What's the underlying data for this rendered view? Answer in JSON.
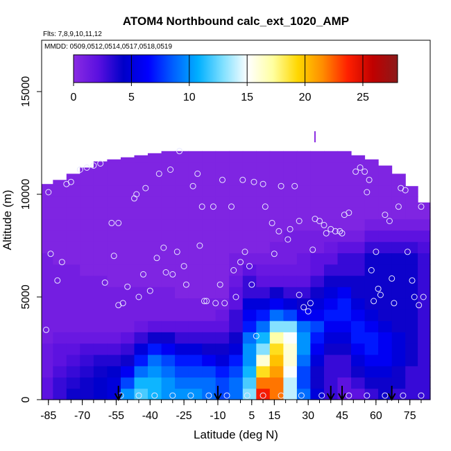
{
  "chart_data": {
    "type": "heatmap",
    "title": "ATOM4 Northbound calc_ext_1020_AMP",
    "annotations": [
      "Flts: 7,8,9,10,11,12",
      "MMDD: 0509,0512,0514,0517,0518,0519"
    ],
    "xlabel": "Latitude (deg N)",
    "ylabel": "Altitude (m)",
    "xlim": [
      -88,
      84
    ],
    "ylim": [
      0,
      17500
    ],
    "x_ticks": [
      -85,
      -70,
      -55,
      -40,
      -25,
      -10,
      5,
      15,
      30,
      45,
      60,
      75
    ],
    "y_ticks": [
      0,
      5000,
      10000,
      15000
    ],
    "colorbar": {
      "min": 0,
      "max": 28,
      "ticks": [
        0,
        5,
        10,
        15,
        20,
        25
      ],
      "colors": [
        "#8a2be2",
        "#5a10e0",
        "#0000c8",
        "#0000ff",
        "#0060ff",
        "#00b0ff",
        "#80e0ff",
        "#ffffff",
        "#ffffa0",
        "#ffd700",
        "#ff8c00",
        "#ff2000",
        "#c00000",
        "#8b1a1a"
      ]
    },
    "grid": false,
    "columns": [
      {
        "lat": -86,
        "top": 10500,
        "values": [
          2,
          2,
          1.5,
          1.5,
          1.5,
          1,
          1,
          1,
          1,
          1,
          1,
          1,
          1,
          0.5,
          0.5,
          0.5,
          0.5,
          0.5,
          0.5,
          0.5,
          0.5,
          0.5
        ]
      },
      {
        "lat": -80,
        "top": 10700,
        "values": [
          3,
          3,
          2.5,
          2,
          2,
          1.5,
          1,
          1,
          1,
          1,
          1,
          1,
          0.5,
          0.5,
          0.5,
          0.5,
          0.5,
          0.5,
          0.5,
          0.5,
          0.5,
          0.5
        ]
      },
      {
        "lat": -74,
        "top": 11000,
        "values": [
          4,
          3.5,
          3,
          2.5,
          2,
          1.5,
          1,
          1,
          1,
          1,
          1,
          1,
          0.5,
          0.5,
          0.5,
          0.5,
          0.5,
          0.5,
          0.5,
          0.5,
          0.5,
          0.5
        ]
      },
      {
        "lat": -68,
        "top": 11300,
        "values": [
          4,
          4,
          3.5,
          3,
          2.5,
          1.5,
          1,
          1,
          1,
          1,
          1,
          0.5,
          0.5,
          0.5,
          0.5,
          0.5,
          0.5,
          0.5,
          0.5,
          0.5,
          0.5,
          0.5
        ]
      },
      {
        "lat": -62,
        "top": 11600,
        "values": [
          4.5,
          4.5,
          4,
          3.5,
          2.5,
          1.5,
          1,
          1,
          1,
          1,
          1,
          0.5,
          0.5,
          0.5,
          0.5,
          0.5,
          0.5,
          0.5,
          0.5,
          0.5,
          0.5,
          0.5
        ]
      },
      {
        "lat": -56,
        "top": 11700,
        "values": [
          5,
          5,
          4.5,
          3.5,
          2.5,
          1.5,
          1,
          1,
          1,
          1,
          0.5,
          0.5,
          0.5,
          0.5,
          0.5,
          0.5,
          0.5,
          0.5,
          0.5,
          0.5,
          0.5,
          0.5
        ]
      },
      {
        "lat": -50,
        "top": 11800,
        "values": [
          10,
          8,
          6,
          4,
          3,
          2,
          1,
          1,
          1,
          1,
          0.5,
          0.5,
          0.5,
          0.5,
          0.5,
          0.5,
          0.5,
          0.5,
          0.5,
          0.5,
          0.5,
          0.5
        ]
      },
      {
        "lat": -44,
        "top": 11900,
        "values": [
          12,
          11,
          9,
          7,
          5,
          3,
          1.5,
          1,
          1,
          1,
          0.5,
          0.5,
          0.5,
          0.5,
          0.5,
          0.5,
          0.5,
          0.5,
          0.5,
          0.5,
          0.5,
          0.5
        ]
      },
      {
        "lat": -38,
        "top": 12000,
        "values": [
          11,
          11,
          10,
          9,
          7,
          4,
          2,
          1,
          1,
          1,
          0.5,
          0.5,
          0.5,
          0.5,
          0.5,
          0.5,
          0.5,
          0.5,
          0.5,
          0.5,
          0.5,
          0.5
        ]
      },
      {
        "lat": -32,
        "top": 12100,
        "values": [
          10,
          10,
          9,
          8,
          6,
          4,
          2,
          1,
          1,
          1,
          0.5,
          0.5,
          0.5,
          0.5,
          0.5,
          0.5,
          0.5,
          0.5,
          0.5,
          0.5,
          0.5,
          0.5
        ]
      },
      {
        "lat": -26,
        "top": 12100,
        "values": [
          10,
          9,
          8,
          7,
          5,
          3,
          2,
          1,
          1,
          0.5,
          0.5,
          0.5,
          0.5,
          0.5,
          0.5,
          0.5,
          0.5,
          0.5,
          0.5,
          0.5,
          0.5,
          0.5
        ]
      },
      {
        "lat": -20,
        "top": 12200,
        "values": [
          10,
          9,
          8,
          7,
          5,
          3,
          2,
          1,
          1,
          0.5,
          0.5,
          0.5,
          0.5,
          0.5,
          0.5,
          0.5,
          0.5,
          0.5,
          0.5,
          0.5,
          0.5,
          0.5
        ]
      },
      {
        "lat": -14,
        "top": 12200,
        "values": [
          9,
          9,
          8,
          6,
          4,
          3,
          2,
          1,
          1,
          0.5,
          0.5,
          0.5,
          0.5,
          0.5,
          0.5,
          0.5,
          0.5,
          0.5,
          0.5,
          0.5,
          0.5,
          0.5
        ]
      },
      {
        "lat": -8,
        "top": 12200,
        "values": [
          8,
          8,
          7,
          5,
          4,
          3,
          2,
          1.5,
          1,
          0.5,
          0.5,
          0.5,
          0.5,
          0.5,
          0.5,
          0.5,
          0.5,
          0.5,
          0.5,
          0.5,
          0.5,
          0.5
        ]
      },
      {
        "lat": -2,
        "top": 12200,
        "values": [
          9,
          9,
          8,
          7,
          5,
          4,
          3,
          3,
          2,
          2,
          1.5,
          1,
          1,
          0.5,
          0.5,
          0.5,
          0.5,
          0.5,
          0.5,
          0.5,
          0.5,
          0.5
        ]
      },
      {
        "lat": 4,
        "top": 12200,
        "values": [
          13,
          12,
          11,
          10,
          10,
          9,
          7,
          6,
          5,
          3,
          3,
          2,
          1,
          0.5,
          0.5,
          0.5,
          0.5,
          0.5,
          0.5,
          0.5,
          0.5,
          0.5
        ]
      },
      {
        "lat": 10,
        "top": 12300,
        "values": [
          24,
          22,
          19,
          16,
          13,
          11,
          9,
          7,
          5,
          3,
          2,
          1.5,
          1,
          0.5,
          0.5,
          0.5,
          0.5,
          0.5,
          0.5,
          0.5,
          0.5,
          0.5
        ]
      },
      {
        "lat": 16,
        "top": 12300,
        "values": [
          22,
          22,
          21,
          20,
          19,
          17,
          13,
          9,
          6,
          4,
          2,
          1.5,
          1,
          1,
          0.5,
          0.5,
          0.5,
          0.5,
          0.5,
          0.5,
          0.5,
          0.5
        ]
      },
      {
        "lat": 22,
        "top": 12300,
        "values": [
          14,
          14,
          15,
          16,
          16,
          15,
          13,
          8,
          5,
          3,
          2,
          1.5,
          1,
          1,
          1,
          0.5,
          0.5,
          0.5,
          0.5,
          0.5,
          0.5,
          0.5
        ]
      },
      {
        "lat": 28,
        "top": 12300,
        "values": [
          9,
          8,
          8,
          9,
          10,
          10,
          9,
          6,
          4,
          3,
          2,
          1.5,
          1.5,
          1,
          1,
          0.5,
          0.5,
          0.5,
          0.5,
          0.5,
          0.5,
          0.5
        ]
      },
      {
        "lat": 34,
        "top": 12200,
        "values": [
          5,
          4,
          4,
          5,
          6,
          7,
          8,
          6,
          5,
          4,
          3,
          2,
          2,
          1,
          1,
          0.5,
          0.5,
          0.5,
          0.5,
          0.5,
          0.5,
          0.5
        ]
      },
      {
        "lat": 40,
        "top": 12200,
        "values": [
          3,
          3,
          3,
          3,
          4,
          5,
          6,
          7,
          6,
          5,
          4,
          3,
          2,
          1.5,
          1,
          0.5,
          0.5,
          0.5,
          0.5,
          0.5,
          0.5,
          0.5
        ]
      },
      {
        "lat": 46,
        "top": 12100,
        "values": [
          2,
          2,
          3,
          3,
          4,
          5,
          6,
          7,
          7,
          6,
          4,
          3,
          3,
          2,
          1,
          0.5,
          0.5,
          0.5,
          0.5,
          0.5,
          0.5,
          0.5
        ]
      },
      {
        "lat": 52,
        "top": 11900,
        "values": [
          2,
          3,
          4,
          5,
          6,
          7,
          7,
          6,
          5,
          4,
          4,
          3,
          3,
          2,
          1,
          0.5,
          0.5,
          0.5,
          0.5,
          0.5,
          0.5,
          0.5
        ]
      },
      {
        "lat": 58,
        "top": 11700,
        "values": [
          3,
          4,
          5,
          6,
          7,
          7,
          6,
          5,
          4,
          4,
          4,
          4,
          4,
          3,
          2,
          1,
          0.5,
          0.5,
          0.5,
          0.5,
          0.5,
          0.5
        ]
      },
      {
        "lat": 64,
        "top": 11400,
        "values": [
          4,
          4,
          5,
          6,
          6,
          6,
          5,
          4,
          4,
          4,
          4,
          4,
          4,
          3,
          2,
          1,
          0.5,
          0.5,
          0.5,
          0.5,
          0.5,
          0.5
        ]
      },
      {
        "lat": 70,
        "top": 11000,
        "values": [
          3,
          4,
          4,
          5,
          5,
          5,
          4,
          4,
          4,
          4,
          4,
          4,
          4,
          3,
          2,
          1,
          0.5,
          0.5,
          0.5,
          0.5,
          0.5,
          0.5
        ]
      },
      {
        "lat": 76,
        "top": 10400,
        "values": [
          3,
          3,
          3,
          4,
          4,
          4,
          4,
          4,
          4,
          4,
          4,
          4,
          4,
          3,
          2,
          1,
          0.5,
          0.5,
          0.5,
          0.5,
          0.5,
          0.5
        ]
      },
      {
        "lat": 81,
        "top": 9600,
        "values": [
          3,
          3,
          3,
          3,
          3,
          3,
          3,
          3,
          3,
          3,
          3,
          3,
          3,
          2.5,
          2,
          1,
          0.5,
          0.5,
          0.5,
          0.5,
          0.5,
          0.5
        ]
      }
    ],
    "row_height_m": 550,
    "obs_points": [
      [
        -86,
        3400
      ],
      [
        -85,
        10100
      ],
      [
        -84,
        7100
      ],
      [
        -81,
        5800
      ],
      [
        -79,
        6700
      ],
      [
        -77,
        10500
      ],
      [
        -75,
        10600
      ],
      [
        -71,
        11200
      ],
      [
        -68,
        11300
      ],
      [
        -65,
        11400
      ],
      [
        -62,
        11500
      ],
      [
        -60,
        5700
      ],
      [
        -57,
        8600
      ],
      [
        -56,
        7000
      ],
      [
        -54,
        8600
      ],
      [
        -54,
        4600
      ],
      [
        -52,
        4700
      ],
      [
        -50,
        5500
      ],
      [
        -47,
        9800
      ],
      [
        -46,
        10000
      ],
      [
        -45,
        5000
      ],
      [
        -43,
        6100
      ],
      [
        -42,
        10300
      ],
      [
        -40,
        5300
      ],
      [
        -37,
        6900
      ],
      [
        -36,
        11000
      ],
      [
        -34,
        7400
      ],
      [
        -33,
        6200
      ],
      [
        -31,
        11200
      ],
      [
        -30,
        6100
      ],
      [
        -28,
        7200
      ],
      [
        -27,
        12100
      ],
      [
        -25,
        6500
      ],
      [
        -24,
        5600
      ],
      [
        -21,
        10400
      ],
      [
        -19,
        11000
      ],
      [
        -18,
        7500
      ],
      [
        -17,
        9400
      ],
      [
        -16,
        4800
      ],
      [
        -15,
        4800
      ],
      [
        -12,
        9400
      ],
      [
        -11,
        4700
      ],
      [
        -9,
        5600
      ],
      [
        -8,
        10700
      ],
      [
        -7,
        4700
      ],
      [
        -4,
        9400
      ],
      [
        -3,
        6300
      ],
      [
        -2,
        5000
      ],
      [
        0,
        6700
      ],
      [
        1,
        10700
      ],
      [
        2,
        7200
      ],
      [
        4,
        6500
      ],
      [
        5,
        5600
      ],
      [
        6,
        10600
      ],
      [
        7,
        3100
      ],
      [
        10,
        10500
      ],
      [
        11,
        9400
      ],
      [
        14,
        8600
      ],
      [
        15,
        7100
      ],
      [
        17,
        8200
      ],
      [
        18,
        10400
      ],
      [
        21,
        7800
      ],
      [
        22,
        8300
      ],
      [
        24,
        10400
      ],
      [
        26,
        8700
      ],
      [
        26,
        5100
      ],
      [
        28,
        4500
      ],
      [
        30,
        4300
      ],
      [
        31,
        4700
      ],
      [
        32,
        7300
      ],
      [
        33,
        8800
      ],
      [
        35,
        8700
      ],
      [
        37,
        8500
      ],
      [
        38,
        8100
      ],
      [
        40,
        8300
      ],
      [
        42,
        8200
      ],
      [
        44,
        8200
      ],
      [
        45,
        8100
      ],
      [
        46,
        9000
      ],
      [
        48,
        9100
      ],
      [
        51,
        11100
      ],
      [
        53,
        11300
      ],
      [
        55,
        11100
      ],
      [
        56,
        10100
      ],
      [
        57,
        10700
      ],
      [
        58,
        6300
      ],
      [
        59,
        4800
      ],
      [
        60,
        7200
      ],
      [
        61,
        5400
      ],
      [
        62,
        5100
      ],
      [
        64,
        9000
      ],
      [
        66,
        8700
      ],
      [
        67,
        5900
      ],
      [
        68,
        4700
      ],
      [
        70,
        9400
      ],
      [
        71,
        10300
      ],
      [
        73,
        10200
      ],
      [
        74,
        7200
      ],
      [
        76,
        5800
      ],
      [
        77,
        5000
      ],
      [
        79,
        4600
      ],
      [
        80,
        9400
      ],
      [
        81,
        5000
      ],
      [
        -53,
        200
      ],
      [
        -45,
        200
      ],
      [
        -38,
        200
      ],
      [
        -30,
        200
      ],
      [
        -22,
        200
      ],
      [
        -14,
        200
      ],
      [
        -6,
        200
      ],
      [
        3,
        200
      ],
      [
        10,
        200
      ],
      [
        18,
        200
      ],
      [
        27,
        200
      ],
      [
        36,
        200
      ],
      [
        48,
        200
      ],
      [
        56,
        200
      ],
      [
        64,
        200
      ],
      [
        72,
        200
      ],
      [
        80,
        200
      ]
    ],
    "arrows_lat": [
      -54,
      -10,
      40,
      45,
      67
    ],
    "top_marker": {
      "lat": 33,
      "alt": 12800
    }
  }
}
